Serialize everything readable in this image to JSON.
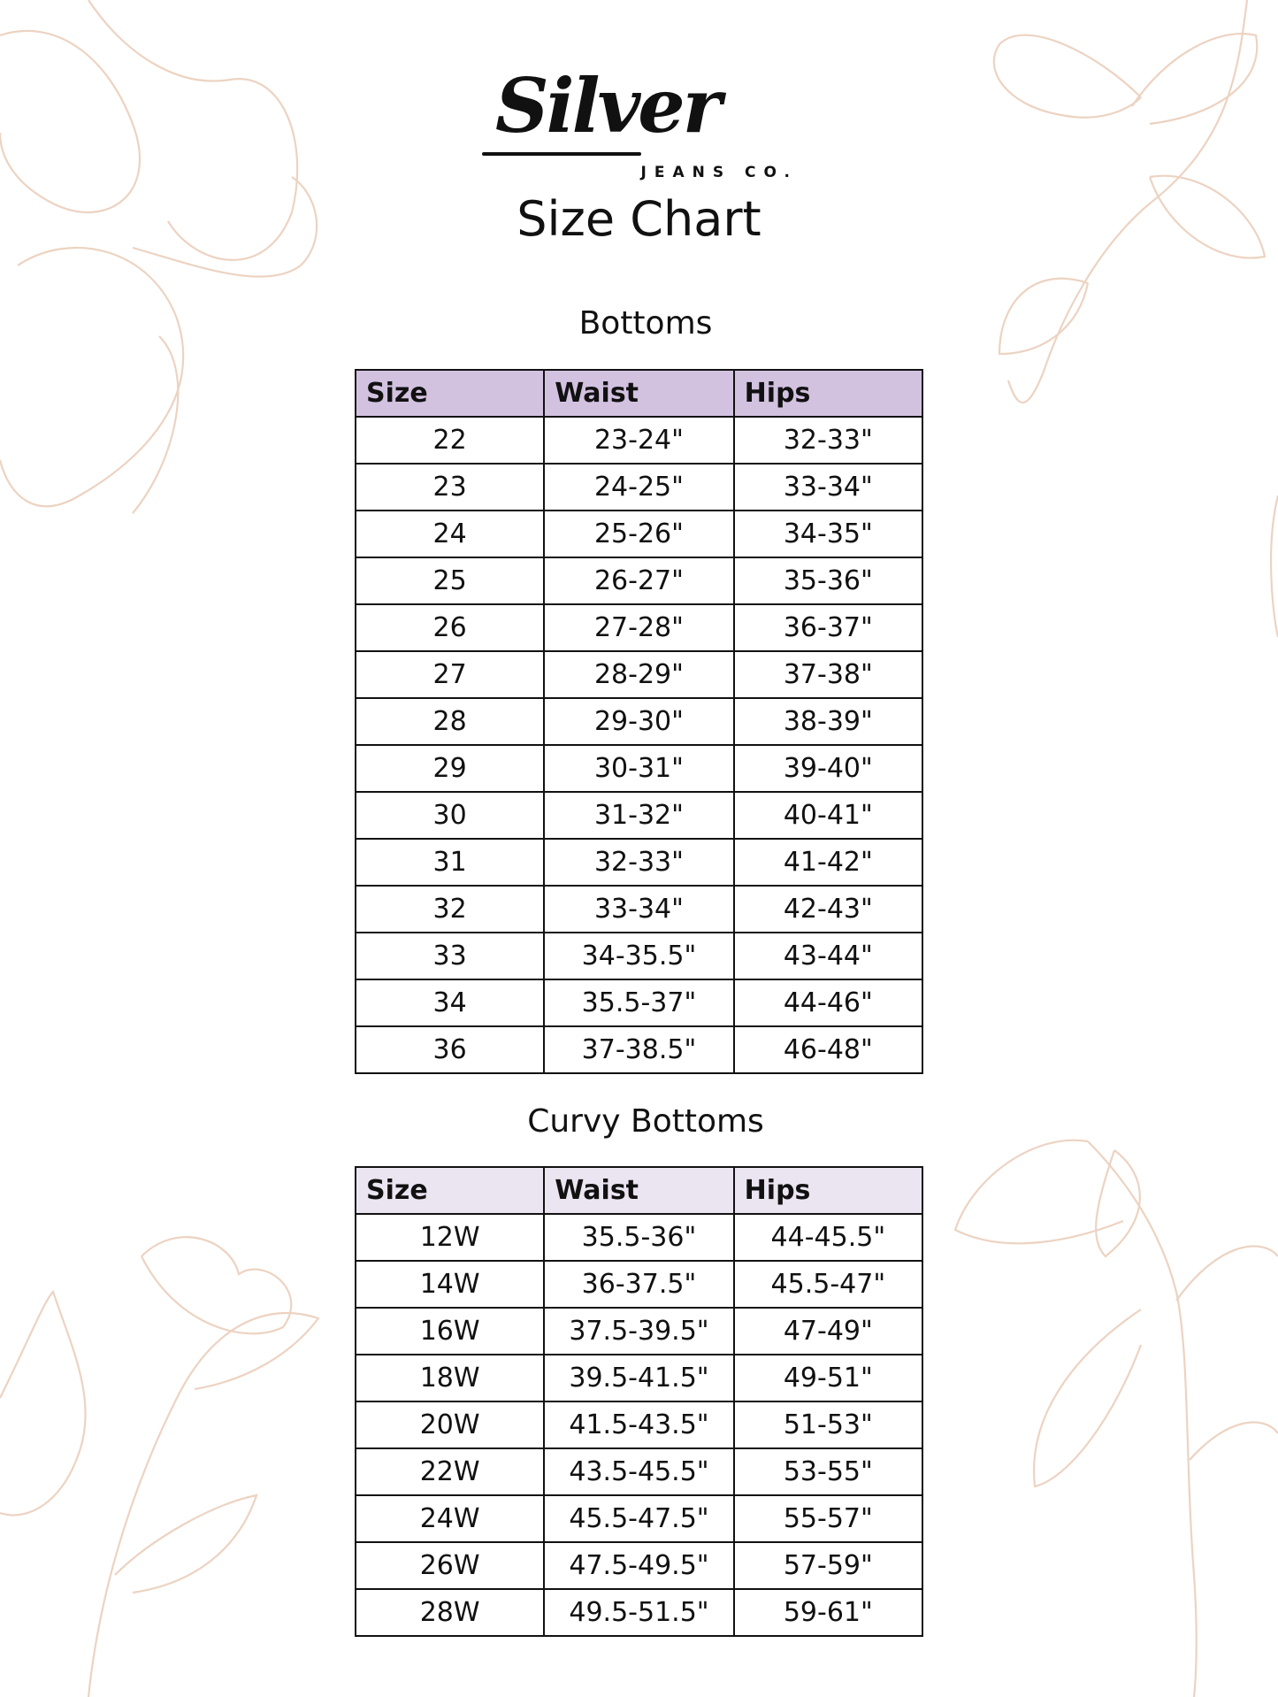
{
  "brand": {
    "name": "Silver",
    "sub": "JEANS CO."
  },
  "title": "Size Chart",
  "colors": {
    "bottoms_header": "#d2c2e0",
    "curvy_header": "#ebe4f1",
    "floral": "#ecd3c2"
  },
  "bottoms": {
    "heading": "Bottoms",
    "columns": [
      "Size",
      "Waist",
      "Hips"
    ],
    "rows": [
      [
        "22",
        "23-24\"",
        "32-33\""
      ],
      [
        "23",
        "24-25\"",
        "33-34\""
      ],
      [
        "24",
        "25-26\"",
        "34-35\""
      ],
      [
        "25",
        "26-27\"",
        "35-36\""
      ],
      [
        "26",
        "27-28\"",
        "36-37\""
      ],
      [
        "27",
        "28-29\"",
        "37-38\""
      ],
      [
        "28",
        "29-30\"",
        "38-39\""
      ],
      [
        "29",
        "30-31\"",
        "39-40\""
      ],
      [
        "30",
        "31-32\"",
        "40-41\""
      ],
      [
        "31",
        "32-33\"",
        "41-42\""
      ],
      [
        "32",
        "33-34\"",
        "42-43\""
      ],
      [
        "33",
        "34-35.5\"",
        "43-44\""
      ],
      [
        "34",
        "35.5-37\"",
        "44-46\""
      ],
      [
        "36",
        "37-38.5\"",
        "46-48\""
      ]
    ]
  },
  "curvy": {
    "heading": "Curvy Bottoms",
    "columns": [
      "Size",
      "Waist",
      "Hips"
    ],
    "rows": [
      [
        "12W",
        "35.5-36\"",
        "44-45.5\""
      ],
      [
        "14W",
        "36-37.5\"",
        "45.5-47\""
      ],
      [
        "16W",
        "37.5-39.5\"",
        "47-49\""
      ],
      [
        "18W",
        "39.5-41.5\"",
        "49-51\""
      ],
      [
        "20W",
        "41.5-43.5\"",
        "51-53\""
      ],
      [
        "22W",
        "43.5-45.5\"",
        "53-55\""
      ],
      [
        "24W",
        "45.5-47.5\"",
        "55-57\""
      ],
      [
        "26W",
        "47.5-49.5\"",
        "57-59\""
      ],
      [
        "28W",
        "49.5-51.5\"",
        "59-61\""
      ]
    ]
  }
}
